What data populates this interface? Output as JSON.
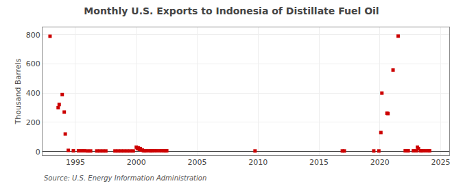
{
  "chart_data": {
    "type": "scatter",
    "title": "Monthly U.S. Exports to Indonesia of Distillate Fuel Oil",
    "ylabel": "Thousand Barrels",
    "source": "Source: U.S. Energy Information Administration",
    "color": "#cc0000",
    "marker": "square",
    "grid": true,
    "xlim": [
      1992.3,
      2025.7
    ],
    "ylim": [
      -25,
      850
    ],
    "xticks": [
      1995,
      2000,
      2005,
      2010,
      2015,
      2020,
      2025
    ],
    "yticks": [
      0,
      200,
      400,
      600,
      800
    ],
    "x": [
      1992.917,
      1993.583,
      1993.667,
      1993.917,
      1994.083,
      1994.167,
      1994.417,
      1994.833,
      1995.25,
      1995.5,
      1995.75,
      1996.0,
      1996.25,
      1996.75,
      1997.0,
      1997.25,
      1997.5,
      1998.25,
      1998.5,
      1998.75,
      1999.0,
      1999.25,
      1999.5,
      1999.75,
      2000.0,
      2000.083,
      2000.167,
      2000.25,
      2000.333,
      2000.417,
      2000.5,
      2000.583,
      2000.667,
      2000.75,
      2000.833,
      2001.083,
      2001.167,
      2001.25,
      2001.333,
      2001.5,
      2001.667,
      2001.917,
      2002.083,
      2002.25,
      2002.333,
      2002.417,
      2002.5,
      2009.75,
      2016.917,
      2017.083,
      2019.5,
      2019.917,
      2020.083,
      2020.167,
      2020.583,
      2020.667,
      2021.083,
      2021.5,
      2022.083,
      2022.25,
      2022.333,
      2022.75,
      2023.0,
      2023.083,
      2023.167,
      2023.333,
      2023.417,
      2023.5,
      2023.75,
      2024.0,
      2024.083
    ],
    "values": [
      789,
      300,
      322,
      390,
      270,
      120,
      8,
      5,
      5,
      5,
      5,
      4,
      4,
      4,
      4,
      4,
      4,
      4,
      4,
      4,
      4,
      4,
      4,
      4,
      30,
      20,
      25,
      15,
      20,
      10,
      10,
      5,
      5,
      5,
      5,
      5,
      5,
      5,
      5,
      5,
      5,
      5,
      5,
      5,
      5,
      5,
      5,
      4,
      4,
      4,
      4,
      4,
      130,
      400,
      262,
      260,
      558,
      790,
      5,
      5,
      5,
      5,
      5,
      30,
      20,
      5,
      5,
      5,
      5,
      5,
      5
    ]
  }
}
